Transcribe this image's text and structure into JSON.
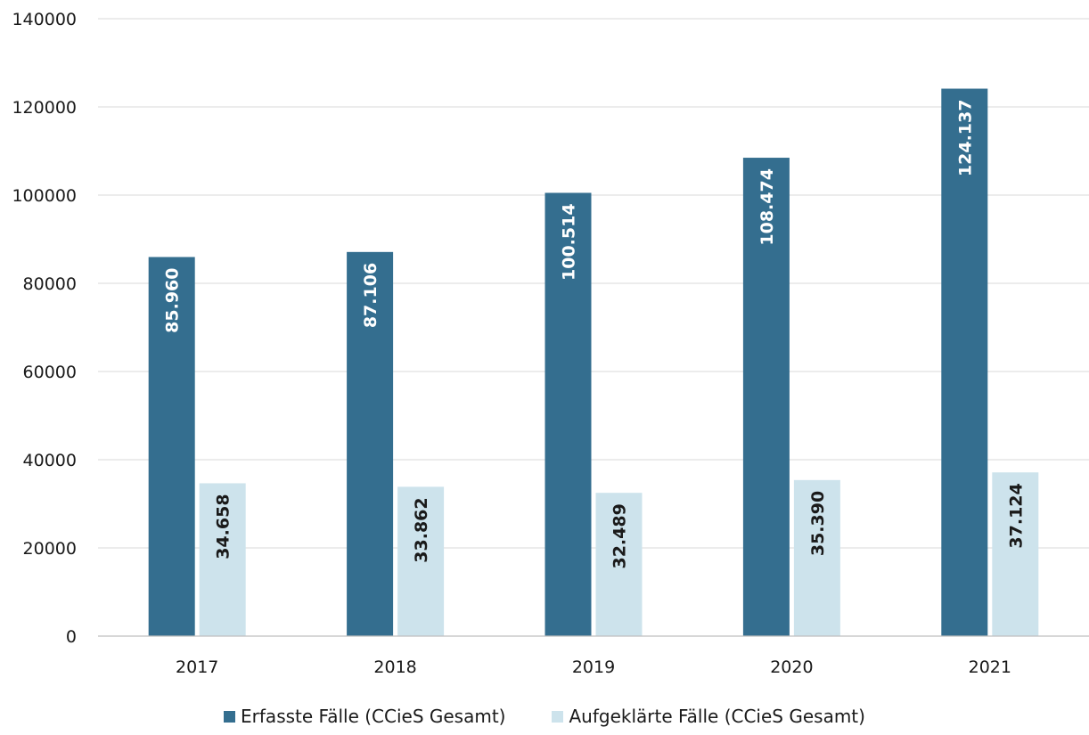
{
  "chart_data": {
    "type": "bar",
    "categories": [
      "2017",
      "2018",
      "2019",
      "2020",
      "2021"
    ],
    "series": [
      {
        "name": "Erfasste Fälle (CCieS Gesamt)",
        "values": [
          85960,
          87106,
          100514,
          108474,
          124137
        ],
        "labels": [
          "85.960",
          "87.106",
          "100.514",
          "108.474",
          "124.137"
        ],
        "color": "#346e8f",
        "label_color": "#ffffff"
      },
      {
        "name": "Aufgeklärte Fälle (CCieS Gesamt)",
        "values": [
          34658,
          33862,
          32489,
          35390,
          37124
        ],
        "labels": [
          "34.658",
          "33.862",
          "32.489",
          "35.390",
          "37.124"
        ],
        "color": "#cde3ec",
        "label_color": "#1a1a1a"
      }
    ],
    "yticks": [
      "0",
      "20000",
      "40000",
      "60000",
      "80000",
      "100000",
      "120000",
      "140000"
    ],
    "ylim": [
      0,
      140000
    ],
    "grid": true,
    "legend_position": "bottom"
  }
}
